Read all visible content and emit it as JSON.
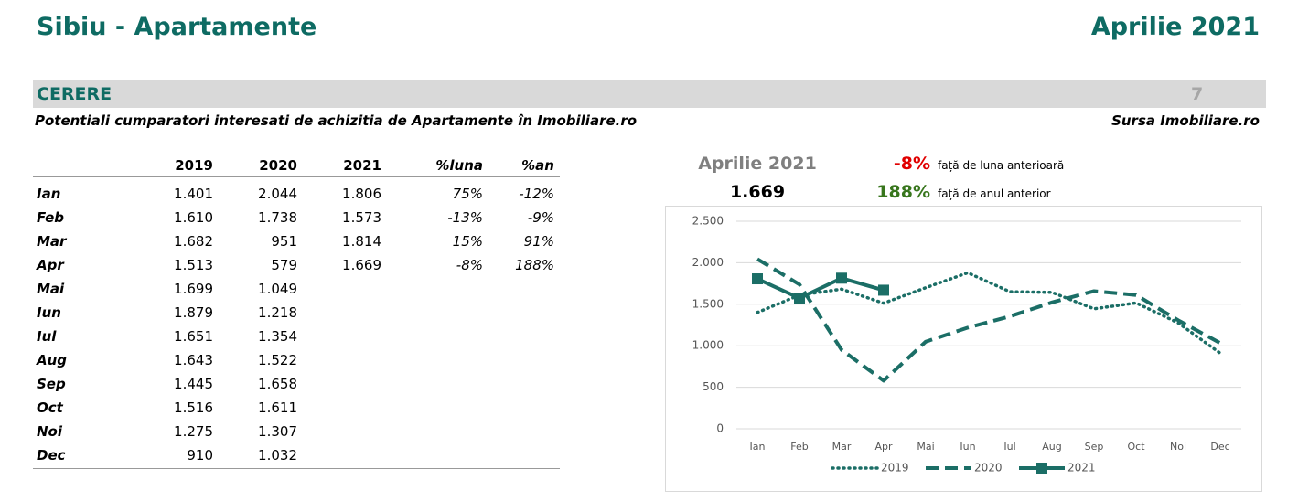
{
  "header": {
    "title": "Sibiu - Apartamente",
    "date": "Aprilie 2021"
  },
  "section": {
    "name": "CERERE",
    "page": "7",
    "subtitle": "Potentiali cumparatori interesati de achizitia de Apartamente în Imobiliare.ro",
    "source": "Sursa Imobiliare.ro"
  },
  "table": {
    "columns": [
      "2019",
      "2020",
      "2021",
      "%luna",
      "%an"
    ],
    "rows": [
      [
        "Ian",
        "1.401",
        "2.044",
        "1.806",
        "75%",
        "-12%"
      ],
      [
        "Feb",
        "1.610",
        "1.738",
        "1.573",
        "-13%",
        "-9%"
      ],
      [
        "Mar",
        "1.682",
        "951",
        "1.814",
        "15%",
        "91%"
      ],
      [
        "Apr",
        "1.513",
        "579",
        "1.669",
        "-8%",
        "188%"
      ],
      [
        "Mai",
        "1.699",
        "1.049"
      ],
      [
        "Iun",
        "1.879",
        "1.218"
      ],
      [
        "Iul",
        "1.651",
        "1.354"
      ],
      [
        "Aug",
        "1.643",
        "1.522"
      ],
      [
        "Sep",
        "1.445",
        "1.658"
      ],
      [
        "Oct",
        "1.516",
        "1.611"
      ],
      [
        "Noi",
        "1.275",
        "1.307"
      ],
      [
        "Dec",
        "910",
        "1.032"
      ]
    ]
  },
  "summary": {
    "period": "Aprilie 2021",
    "value": "1.669",
    "monthly_change": "-8%",
    "monthly_text": "față de luna anterioară",
    "yearly_change": "188%",
    "yearly_text": "față de anul anterior"
  },
  "chart_data": {
    "type": "line",
    "categories": [
      "Ian",
      "Feb",
      "Mar",
      "Apr",
      "Mai",
      "Iun",
      "Iul",
      "Aug",
      "Sep",
      "Oct",
      "Noi",
      "Dec"
    ],
    "series": [
      {
        "name": "2019",
        "color": "#1b6e66",
        "style": "dotted",
        "values": [
          1401,
          1610,
          1682,
          1513,
          1699,
          1879,
          1651,
          1643,
          1445,
          1516,
          1275,
          910
        ]
      },
      {
        "name": "2020",
        "color": "#1b6e66",
        "style": "dashed",
        "values": [
          2044,
          1738,
          951,
          579,
          1049,
          1218,
          1354,
          1522,
          1658,
          1611,
          1307,
          1032
        ]
      },
      {
        "name": "2021",
        "color": "#1b6e66",
        "style": "solid",
        "markers": true,
        "values": [
          1806,
          1573,
          1814,
          1669,
          null,
          null,
          null,
          null,
          null,
          null,
          null,
          null
        ]
      }
    ],
    "ylim": [
      0,
      2500
    ],
    "yticks": [
      0,
      500,
      {
        "value": 1000,
        "label": "1.000"
      },
      {
        "value": 1500,
        "label": "1.500"
      },
      {
        "value": 2000,
        "label": "2.000"
      },
      {
        "value": 2500,
        "label": "2.500"
      }
    ],
    "grid": true,
    "legend": "bottom"
  }
}
